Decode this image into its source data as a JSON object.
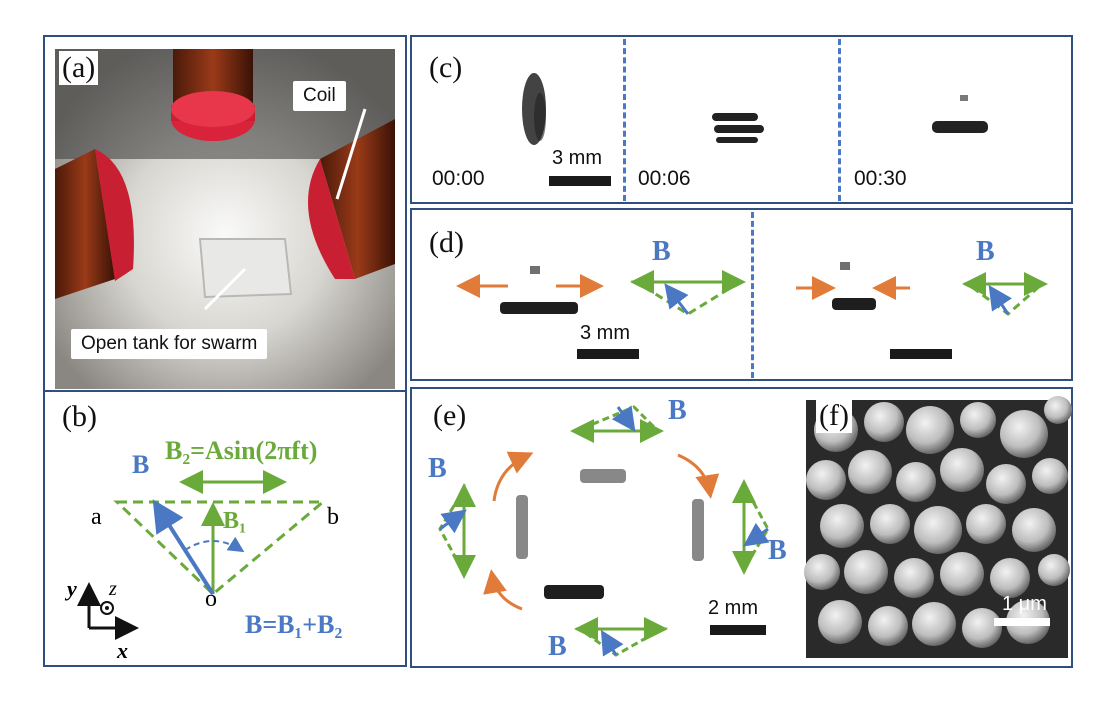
{
  "panels": {
    "a": {
      "label": "(a)",
      "coil_label": "Coil",
      "tank_label": "Open tank for swarm"
    },
    "b": {
      "label": "(b)",
      "b2_eq": "B₂=Asin(2πft)",
      "b_label": "B",
      "b1_label": "B₁",
      "point_a": "a",
      "point_b": "b",
      "origin": "o",
      "sum_eq": "B=B₁+B₂",
      "axis_y": "y",
      "axis_z": "z",
      "axis_x": "x"
    },
    "c": {
      "label": "(c)",
      "times": [
        "00:00",
        "00:06",
        "00:30"
      ],
      "scale": "3 mm"
    },
    "d": {
      "label": "(d)",
      "b_label": "B",
      "scale": "3 mm"
    },
    "e": {
      "label": "(e)",
      "b_label": "B",
      "scale": "2 mm"
    },
    "f": {
      "label": "(f)",
      "scale": "1 μm"
    }
  },
  "colors": {
    "frame": "#2f4f7f",
    "blue": "#4a78c2",
    "green": "#6aaa3a",
    "orange": "#e07b39"
  }
}
